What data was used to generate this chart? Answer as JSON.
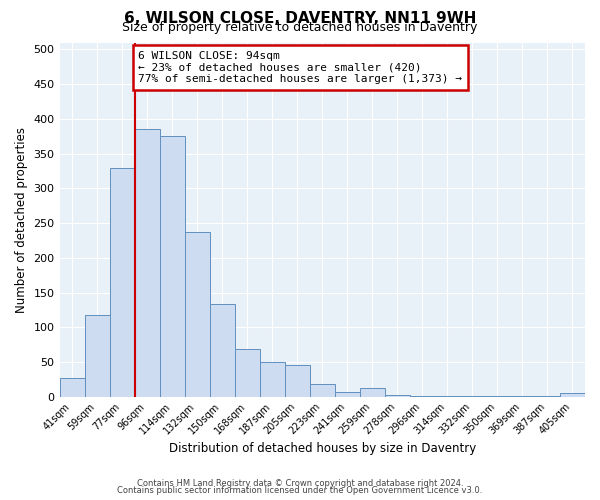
{
  "title": "6, WILSON CLOSE, DAVENTRY, NN11 9WH",
  "subtitle": "Size of property relative to detached houses in Daventry",
  "xlabel": "Distribution of detached houses by size in Daventry",
  "ylabel": "Number of detached properties",
  "bar_labels": [
    "41sqm",
    "59sqm",
    "77sqm",
    "96sqm",
    "114sqm",
    "132sqm",
    "150sqm",
    "168sqm",
    "187sqm",
    "205sqm",
    "223sqm",
    "241sqm",
    "259sqm",
    "278sqm",
    "296sqm",
    "314sqm",
    "332sqm",
    "350sqm",
    "369sqm",
    "387sqm",
    "405sqm"
  ],
  "bar_values": [
    27,
    117,
    330,
    385,
    375,
    237,
    133,
    68,
    50,
    45,
    18,
    7,
    13,
    2,
    1,
    1,
    1,
    1,
    1,
    1,
    5
  ],
  "bar_color": "#cddcf0",
  "bar_edge_color": "#6090c0",
  "property_line_color": "#cc0000",
  "annotation_text": "6 WILSON CLOSE: 94sqm\n← 23% of detached houses are smaller (420)\n77% of semi-detached houses are larger (1,373) →",
  "annotation_box_facecolor": "#ffffff",
  "annotation_box_edgecolor": "#cc0000",
  "ylim": [
    0,
    510
  ],
  "yticks": [
    0,
    50,
    100,
    150,
    200,
    250,
    300,
    350,
    400,
    450,
    500
  ],
  "plot_bg_color": "#e8f0f8",
  "footer_line1": "Contains HM Land Registry data © Crown copyright and database right 2024.",
  "footer_line2": "Contains public sector information licensed under the Open Government Licence v3.0."
}
